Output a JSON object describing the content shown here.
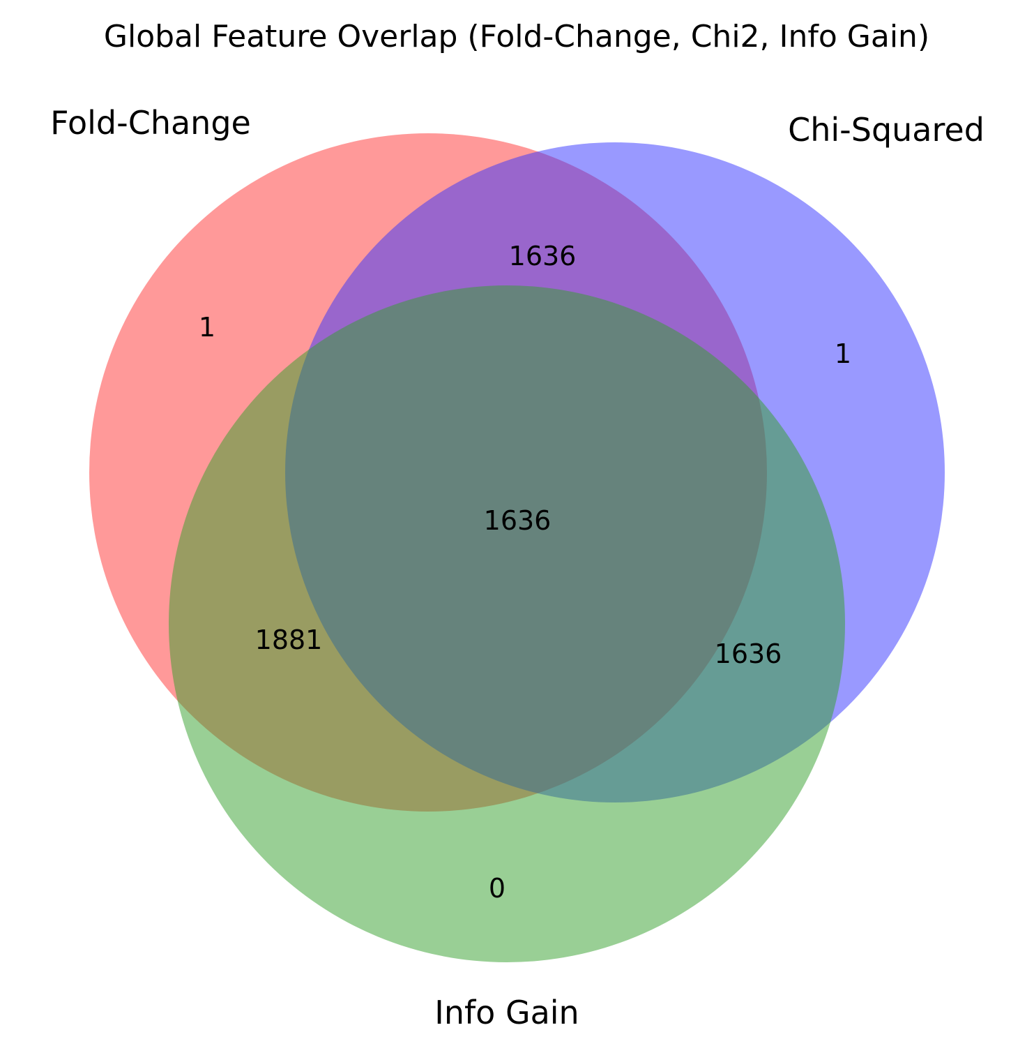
{
  "title": "Global Feature Overlap (Fold-Change, Chi2, Info Gain)",
  "sets": [
    {
      "key": "A",
      "name": "Fold-Change",
      "color": "#ff3333"
    },
    {
      "key": "B",
      "name": "Chi-Squared",
      "color": "#3333ff"
    },
    {
      "key": "C",
      "name": "Info Gain",
      "color": "#33a02c"
    }
  ],
  "regions": {
    "A_only": "1",
    "B_only": "1",
    "C_only": "0",
    "A_and_B_only": "1636",
    "A_and_C_only": "1881",
    "B_and_C_only": "1636",
    "A_and_B_and_C": "1636"
  }
}
